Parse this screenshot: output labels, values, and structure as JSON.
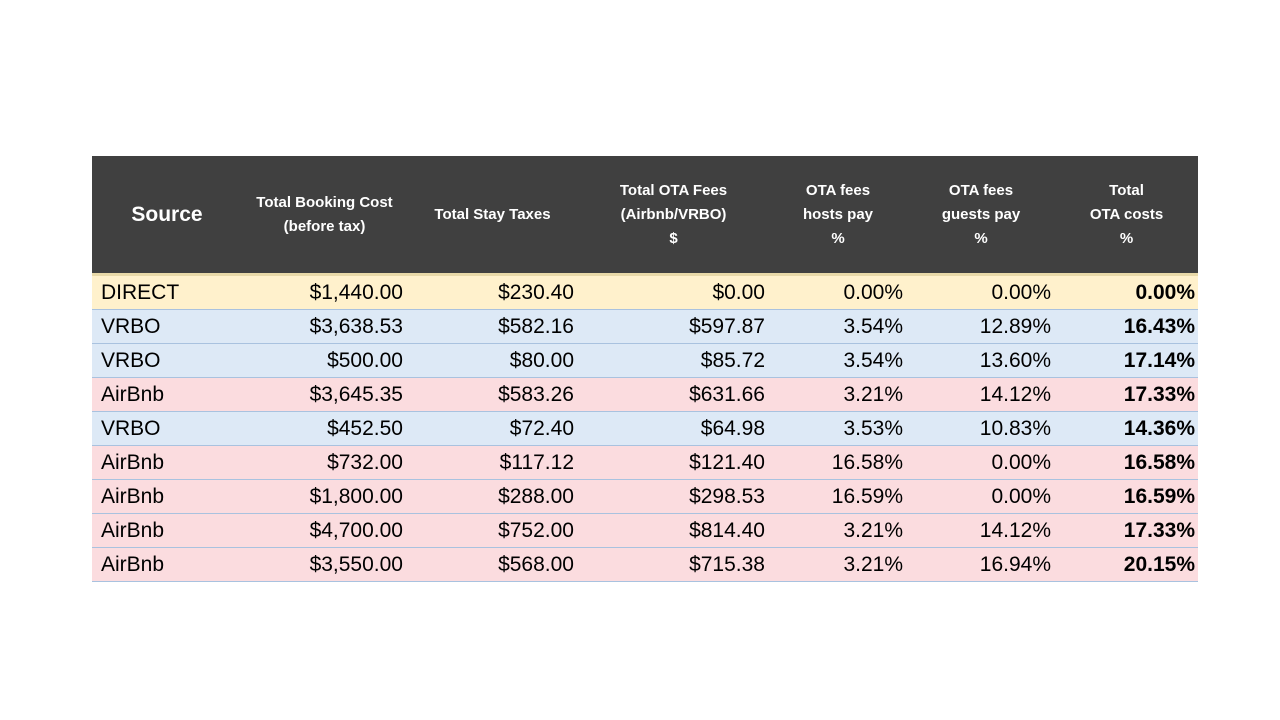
{
  "table": {
    "headers": [
      {
        "lines": [
          "Source"
        ]
      },
      {
        "lines": [
          "Total Booking Cost",
          "(before tax)"
        ]
      },
      {
        "lines": [
          "Total Stay Taxes"
        ]
      },
      {
        "lines": [
          "Total OTA Fees",
          "(Airbnb/VRBO)",
          "$"
        ]
      },
      {
        "lines": [
          "OTA fees",
          "hosts pay",
          "%"
        ]
      },
      {
        "lines": [
          "OTA fees",
          "guests pay",
          "%"
        ]
      },
      {
        "lines": [
          "Total",
          "OTA costs",
          "%"
        ]
      }
    ],
    "row_colors": {
      "DIRECT": "#fff1cc",
      "VRBO": "#dde9f6",
      "AirBnb": "#fbdcdf"
    },
    "rows": [
      [
        "DIRECT",
        "$1,440.00",
        "$230.40",
        "$0.00",
        "0.00%",
        "0.00%",
        "0.00%"
      ],
      [
        "VRBO",
        "$3,638.53",
        "$582.16",
        "$597.87",
        "3.54%",
        "12.89%",
        "16.43%"
      ],
      [
        "VRBO",
        "$500.00",
        "$80.00",
        "$85.72",
        "3.54%",
        "13.60%",
        "17.14%"
      ],
      [
        "AirBnb",
        "$3,645.35",
        "$583.26",
        "$631.66",
        "3.21%",
        "14.12%",
        "17.33%"
      ],
      [
        "VRBO",
        "$452.50",
        "$72.40",
        "$64.98",
        "3.53%",
        "10.83%",
        "14.36%"
      ],
      [
        "AirBnb",
        "$732.00",
        "$117.12",
        "$121.40",
        "16.58%",
        "0.00%",
        "16.58%"
      ],
      [
        "AirBnb",
        "$1,800.00",
        "$288.00",
        "$298.53",
        "16.59%",
        "0.00%",
        "16.59%"
      ],
      [
        "AirBnb",
        "$4,700.00",
        "$752.00",
        "$814.40",
        "3.21%",
        "14.12%",
        "17.33%"
      ],
      [
        "AirBnb",
        "$3,550.00",
        "$568.00",
        "$715.38",
        "3.21%",
        "16.94%",
        "20.15%"
      ]
    ]
  }
}
